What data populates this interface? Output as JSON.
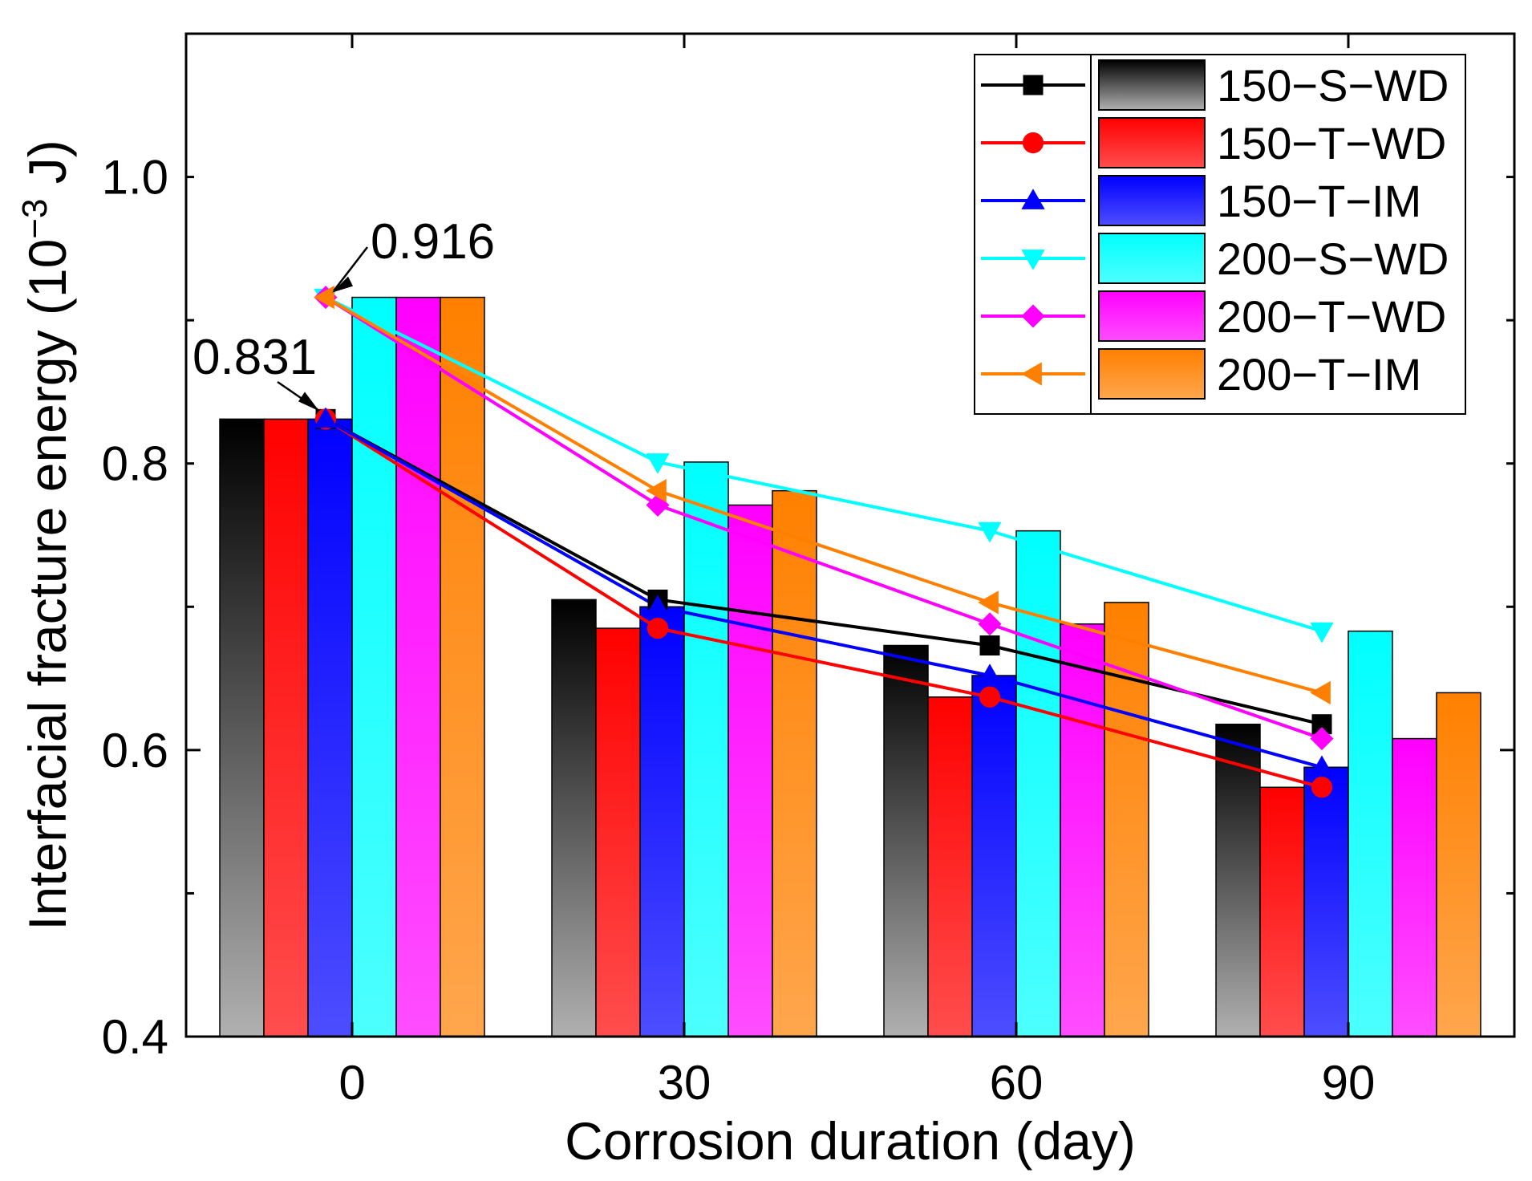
{
  "chart_data": {
    "type": "bar",
    "title": "",
    "xlabel": "Corrosion duration (day)",
    "ylabel_prefix": "Interfacial fracture energy (10",
    "ylabel_exp": "−3",
    "ylabel_suffix": " J)",
    "categories": [
      "0",
      "30",
      "60",
      "90"
    ],
    "ylim": [
      0.4,
      1.1
    ],
    "yticks": [
      "0.4",
      "0.6",
      "0.8",
      "1.0"
    ],
    "grid": false,
    "legend_position": "top-right",
    "series": [
      {
        "name": "150−S−WD",
        "color": "#000000",
        "marker": "square",
        "values": [
          0.831,
          0.705,
          0.673,
          0.618
        ]
      },
      {
        "name": "150−T−WD",
        "color": "#ff0000",
        "marker": "circle",
        "values": [
          0.831,
          0.685,
          0.637,
          0.574
        ]
      },
      {
        "name": "150−T−IM",
        "color": "#0000ff",
        "marker": "triangle-up",
        "values": [
          0.831,
          0.7,
          0.652,
          0.588
        ]
      },
      {
        "name": "200−S−WD",
        "color": "#00ffff",
        "marker": "triangle-down",
        "values": [
          0.916,
          0.801,
          0.753,
          0.683
        ]
      },
      {
        "name": "200−T−WD",
        "color": "#ff00ff",
        "marker": "diamond",
        "values": [
          0.916,
          0.771,
          0.688,
          0.608
        ]
      },
      {
        "name": "200−T−IM",
        "color": "#ff8000",
        "marker": "triangle-left",
        "values": [
          0.916,
          0.781,
          0.703,
          0.64
        ]
      }
    ],
    "annotations": [
      {
        "text": "0.916",
        "value": 0.916,
        "category": "0"
      },
      {
        "text": "0.831",
        "value": 0.831,
        "category": "0"
      }
    ]
  }
}
